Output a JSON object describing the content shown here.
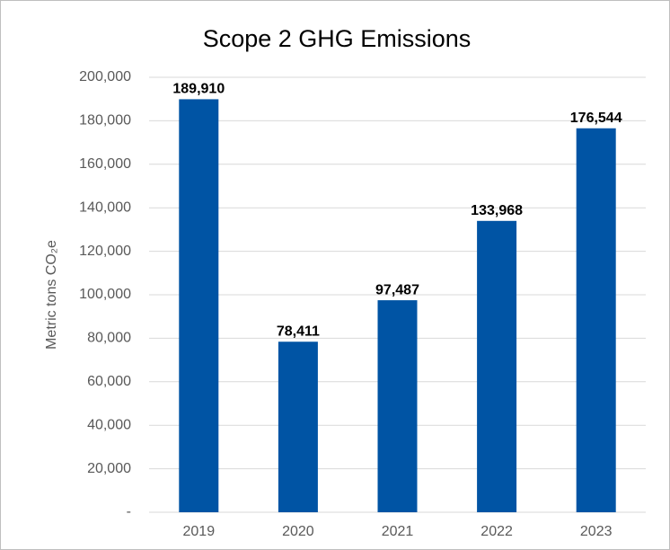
{
  "chart_data": {
    "type": "bar",
    "title": "Scope 2 GHG Emissions",
    "y_label": "Metric tons CO₂e",
    "categories": [
      "2019",
      "2020",
      "2021",
      "2022",
      "2023"
    ],
    "values": [
      189910,
      78411,
      97487,
      133968,
      176544
    ],
    "value_labels": [
      "189,910",
      "78,411",
      "97,487",
      "133,968",
      "176,544"
    ],
    "color": "#0054a4",
    "ylim": [
      0,
      200000
    ],
    "yticks": [
      {
        "value": 0,
        "label": "-"
      },
      {
        "value": 20000,
        "label": "20,000"
      },
      {
        "value": 40000,
        "label": "40,000"
      },
      {
        "value": 60000,
        "label": "60,000"
      },
      {
        "value": 80000,
        "label": "80,000"
      },
      {
        "value": 100000,
        "label": "100,000"
      },
      {
        "value": 120000,
        "label": "120,000"
      },
      {
        "value": 140000,
        "label": "140,000"
      },
      {
        "value": 160000,
        "label": "160,000"
      },
      {
        "value": 180000,
        "label": "180,000"
      },
      {
        "value": 200000,
        "label": "200,000"
      }
    ],
    "grid": true
  }
}
